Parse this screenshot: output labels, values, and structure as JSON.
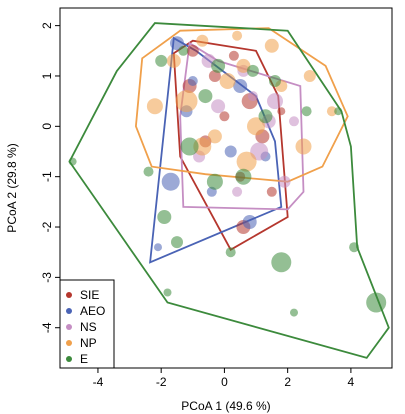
{
  "chart_data": {
    "type": "scatter",
    "xlabel": "PCoA 1 (49.6 %)",
    "ylabel": "PCoA 2 (29.8 %)",
    "xlim": [
      -5.2,
      5.3
    ],
    "ylim": [
      -4.8,
      2.35
    ],
    "xticks": [
      -4,
      -2,
      0,
      2,
      4
    ],
    "yticks": [
      -4,
      -3,
      -2,
      -1,
      0,
      1,
      2
    ],
    "grid": false,
    "legend_position": "bottom-left",
    "series": [
      {
        "name": "SIE",
        "color": "#b5372e",
        "hull": [
          [
            -1.6,
            1.45
          ],
          [
            -1.0,
            1.7
          ],
          [
            1.0,
            1.5
          ],
          [
            1.7,
            0.6
          ],
          [
            2.0,
            -1.8
          ],
          [
            0.2,
            -2.45
          ],
          [
            -1.4,
            -0.6
          ]
        ],
        "points": [
          {
            "x": -1.0,
            "y": 1.5,
            "size": 0.4
          },
          {
            "x": 0.3,
            "y": 1.4,
            "size": 0.3
          },
          {
            "x": 0.8,
            "y": 0.5,
            "size": 0.6
          },
          {
            "x": 1.2,
            "y": -0.2,
            "size": 0.5
          },
          {
            "x": -0.6,
            "y": -0.3,
            "size": 0.4
          },
          {
            "x": 0.5,
            "y": -1.0,
            "size": 0.3
          },
          {
            "x": 0.6,
            "y": -2.0,
            "size": 0.5
          },
          {
            "x": 1.5,
            "y": -1.3,
            "size": 0.3
          },
          {
            "x": -1.1,
            "y": 0.8,
            "size": 0.5
          },
          {
            "x": 0.0,
            "y": 0.2,
            "size": 0.3
          },
          {
            "x": 1.8,
            "y": 0.3,
            "size": 0.2
          },
          {
            "x": -0.3,
            "y": 1.0,
            "size": 0.4
          }
        ]
      },
      {
        "name": "AEO",
        "color": "#4a63b5",
        "hull": [
          [
            -1.6,
            1.75
          ],
          [
            -0.9,
            1.5
          ],
          [
            1.0,
            0.6
          ],
          [
            1.6,
            -0.3
          ],
          [
            1.8,
            -1.6
          ],
          [
            -2.35,
            -2.7
          ]
        ],
        "points": [
          {
            "x": -1.5,
            "y": 1.65,
            "size": 0.5
          },
          {
            "x": -1.2,
            "y": 0.3,
            "size": 0.4
          },
          {
            "x": -1.7,
            "y": -1.1,
            "size": 0.7
          },
          {
            "x": -0.4,
            "y": -1.3,
            "size": 0.3
          },
          {
            "x": 0.2,
            "y": -0.5,
            "size": 0.4
          },
          {
            "x": 0.8,
            "y": -1.9,
            "size": 0.5
          },
          {
            "x": -1.0,
            "y": 0.9,
            "size": 0.3
          },
          {
            "x": -2.1,
            "y": -2.4,
            "size": 0.2
          },
          {
            "x": 0.5,
            "y": 0.8,
            "size": 0.5
          },
          {
            "x": 1.3,
            "y": -0.6,
            "size": 0.3
          }
        ]
      },
      {
        "name": "NS",
        "color": "#c58ec3",
        "hull": [
          [
            -1.1,
            1.65
          ],
          [
            -0.2,
            1.3
          ],
          [
            2.4,
            0.8
          ],
          [
            2.5,
            -1.3
          ],
          [
            2.0,
            -1.65
          ],
          [
            -1.3,
            -1.6
          ],
          [
            -1.4,
            0.2
          ]
        ],
        "points": [
          {
            "x": -0.5,
            "y": 1.3,
            "size": 0.5
          },
          {
            "x": 0.6,
            "y": 1.1,
            "size": 0.4
          },
          {
            "x": 1.6,
            "y": 0.5,
            "size": 0.6
          },
          {
            "x": 2.2,
            "y": 0.1,
            "size": 0.3
          },
          {
            "x": 1.1,
            "y": -0.5,
            "size": 0.7
          },
          {
            "x": -0.8,
            "y": -0.6,
            "size": 0.4
          },
          {
            "x": 0.4,
            "y": -1.3,
            "size": 0.3
          },
          {
            "x": 1.9,
            "y": -1.1,
            "size": 0.4
          },
          {
            "x": -0.2,
            "y": 0.4,
            "size": 0.5
          },
          {
            "x": 1.4,
            "y": 0.1,
            "size": 0.5
          },
          {
            "x": 0.9,
            "y": 0.6,
            "size": 0.3
          }
        ]
      },
      {
        "name": "NP",
        "color": "#f0a04b",
        "hull": [
          [
            -2.6,
            1.35
          ],
          [
            -1.4,
            1.9
          ],
          [
            1.4,
            1.95
          ],
          [
            3.2,
            1.2
          ],
          [
            3.9,
            0.2
          ],
          [
            3.1,
            -0.8
          ],
          [
            2.0,
            -1.1
          ],
          [
            -0.6,
            -0.95
          ],
          [
            -2.3,
            -0.8
          ],
          [
            -2.8,
            0.0
          ]
        ],
        "points": [
          {
            "x": -2.2,
            "y": 0.4,
            "size": 0.6
          },
          {
            "x": -1.6,
            "y": 1.3,
            "size": 0.5
          },
          {
            "x": -0.7,
            "y": 1.7,
            "size": 0.4
          },
          {
            "x": 0.4,
            "y": 1.8,
            "size": 0.3
          },
          {
            "x": 1.5,
            "y": 1.6,
            "size": 0.5
          },
          {
            "x": 2.7,
            "y": 1.0,
            "size": 0.4
          },
          {
            "x": 3.4,
            "y": 0.3,
            "size": 0.3
          },
          {
            "x": 2.5,
            "y": -0.4,
            "size": 0.6
          },
          {
            "x": 0.7,
            "y": -0.7,
            "size": 0.8
          },
          {
            "x": -0.7,
            "y": -0.4,
            "size": 0.7
          },
          {
            "x": -1.2,
            "y": 0.5,
            "size": 0.9
          },
          {
            "x": 0.1,
            "y": 0.9,
            "size": 0.6
          },
          {
            "x": 1.0,
            "y": 0.0,
            "size": 0.7
          },
          {
            "x": -0.3,
            "y": -0.2,
            "size": 0.5
          },
          {
            "x": 1.8,
            "y": 0.8,
            "size": 0.4
          },
          {
            "x": 0.6,
            "y": 1.2,
            "size": 0.5
          }
        ]
      },
      {
        "name": "E",
        "color": "#3c8a3c",
        "hull": [
          [
            -3.4,
            1.1
          ],
          [
            -2.2,
            2.05
          ],
          [
            2.0,
            1.9
          ],
          [
            3.7,
            0.3
          ],
          [
            4.0,
            -0.4
          ],
          [
            4.2,
            -2.4
          ],
          [
            5.2,
            -4.0
          ],
          [
            4.5,
            -4.6
          ],
          [
            -1.8,
            -3.5
          ],
          [
            -4.9,
            -0.7
          ]
        ],
        "points": [
          {
            "x": -4.8,
            "y": -0.7,
            "size": 0.2
          },
          {
            "x": -2.0,
            "y": 1.3,
            "size": 0.4
          },
          {
            "x": -1.3,
            "y": 1.5,
            "size": 0.3
          },
          {
            "x": -0.2,
            "y": 1.2,
            "size": 0.5
          },
          {
            "x": 0.9,
            "y": 1.1,
            "size": 0.4
          },
          {
            "x": 2.6,
            "y": 0.3,
            "size": 0.3
          },
          {
            "x": 3.6,
            "y": 0.3,
            "size": 0.2
          },
          {
            "x": -2.4,
            "y": -0.9,
            "size": 0.3
          },
          {
            "x": -1.9,
            "y": -1.8,
            "size": 0.5
          },
          {
            "x": -1.5,
            "y": -2.3,
            "size": 0.4
          },
          {
            "x": -0.3,
            "y": -1.1,
            "size": 0.6
          },
          {
            "x": 1.8,
            "y": -2.7,
            "size": 0.8
          },
          {
            "x": 2.2,
            "y": -3.7,
            "size": 0.2
          },
          {
            "x": 4.8,
            "y": -3.5,
            "size": 0.8
          },
          {
            "x": -1.1,
            "y": -0.4,
            "size": 0.7
          },
          {
            "x": 0.6,
            "y": -1.0,
            "size": 0.6
          },
          {
            "x": 1.3,
            "y": 0.2,
            "size": 0.5
          },
          {
            "x": -0.6,
            "y": 0.6,
            "size": 0.5
          },
          {
            "x": 0.2,
            "y": -2.5,
            "size": 0.3
          },
          {
            "x": -1.8,
            "y": -3.3,
            "size": 0.2
          },
          {
            "x": 4.1,
            "y": -2.4,
            "size": 0.3
          },
          {
            "x": 1.6,
            "y": 0.9,
            "size": 0.4
          }
        ]
      }
    ]
  }
}
